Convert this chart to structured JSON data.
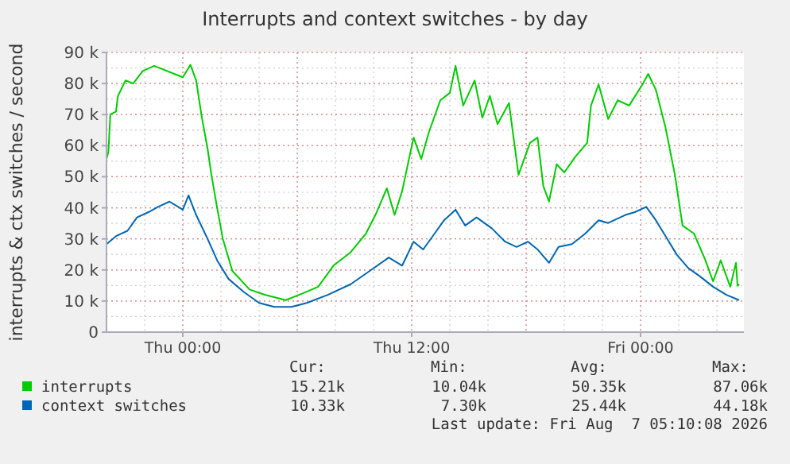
{
  "chart_data": {
    "type": "line",
    "title": "Interrupts and context switches - by day",
    "ylabel": "interrupts & ctx switches / second",
    "xlim": [
      "2026-08-05T20:00",
      "2026-08-07T05:25"
    ],
    "xticks": [
      {
        "value": "2026-08-06T00:00",
        "label": "Thu 00:00"
      },
      {
        "value": "2026-08-06T12:00",
        "label": "Thu 12:00"
      },
      {
        "value": "2026-08-07T00:00",
        "label": "Fri 00:00"
      }
    ],
    "ylim": [
      0,
      90000
    ],
    "yticks": [
      0,
      {
        "value": 10000,
        "label": "10 k"
      },
      {
        "value": 20000,
        "label": "20 k"
      },
      {
        "value": 30000,
        "label": "30 k"
      },
      {
        "value": 40000,
        "label": "40 k"
      },
      {
        "value": 50000,
        "label": "50 k"
      },
      {
        "value": 60000,
        "label": "60 k"
      },
      {
        "value": 70000,
        "label": "70 k"
      },
      {
        "value": 80000,
        "label": "80 k"
      },
      {
        "value": 90000,
        "label": "90 k"
      }
    ],
    "grid": true,
    "legend": "bottom",
    "marker": "none",
    "line_style": "solid",
    "series": [
      {
        "name": "interrupts",
        "color": "#00cc00",
        "x": [
          "2026-08-05T20:00",
          "2026-08-05T20:06",
          "2026-08-05T20:12",
          "2026-08-05T20:30",
          "2026-08-05T20:36",
          "2026-08-05T21:00",
          "2026-08-05T21:24",
          "2026-08-05T21:54",
          "2026-08-05T22:30",
          "2026-08-06T00:00",
          "2026-08-06T00:24",
          "2026-08-06T00:42",
          "2026-08-06T01:00",
          "2026-08-06T01:18",
          "2026-08-06T01:30",
          "2026-08-06T01:48",
          "2026-08-06T02:06",
          "2026-08-06T02:36",
          "2026-08-06T03:30",
          "2026-08-06T04:18",
          "2026-08-06T05:24",
          "2026-08-06T06:18",
          "2026-08-06T07:06",
          "2026-08-06T07:54",
          "2026-08-06T08:48",
          "2026-08-06T09:36",
          "2026-08-06T10:06",
          "2026-08-06T10:42",
          "2026-08-06T11:06",
          "2026-08-06T11:30",
          "2026-08-06T12:06",
          "2026-08-06T12:30",
          "2026-08-06T12:54",
          "2026-08-06T13:30",
          "2026-08-06T14:00",
          "2026-08-06T14:18",
          "2026-08-06T14:42",
          "2026-08-06T15:18",
          "2026-08-06T15:42",
          "2026-08-06T16:06",
          "2026-08-06T16:30",
          "2026-08-06T17:06",
          "2026-08-06T17:36",
          "2026-08-06T18:12",
          "2026-08-06T18:36",
          "2026-08-06T18:54",
          "2026-08-06T19:12",
          "2026-08-06T19:36",
          "2026-08-06T20:00",
          "2026-08-06T20:36",
          "2026-08-06T21:12",
          "2026-08-06T21:24",
          "2026-08-06T21:48",
          "2026-08-06T22:18",
          "2026-08-06T22:48",
          "2026-08-06T23:24",
          "2026-08-07T00:06",
          "2026-08-07T00:24",
          "2026-08-07T00:48",
          "2026-08-07T01:18",
          "2026-08-07T01:48",
          "2026-08-07T02:12",
          "2026-08-07T02:48",
          "2026-08-07T03:24",
          "2026-08-07T03:48",
          "2026-08-07T04:12",
          "2026-08-07T04:42",
          "2026-08-07T05:00",
          "2026-08-07T05:05",
          "2026-08-07T05:10"
        ],
        "values": [
          55700,
          58000,
          70000,
          71000,
          76000,
          81000,
          80000,
          84000,
          85700,
          82000,
          86000,
          81000,
          69000,
          59000,
          50600,
          40000,
          30000,
          19700,
          13700,
          12000,
          10300,
          12500,
          14600,
          21400,
          25700,
          31700,
          37700,
          46300,
          37700,
          45400,
          62600,
          55700,
          64300,
          74600,
          77000,
          85700,
          72900,
          81000,
          69000,
          76000,
          66900,
          73700,
          50600,
          60900,
          62600,
          47000,
          42000,
          54000,
          51400,
          56600,
          60900,
          72900,
          79700,
          68600,
          74600,
          72900,
          79700,
          83100,
          78000,
          66000,
          50600,
          34300,
          31700,
          23100,
          16300,
          23100,
          14600,
          22300,
          14900,
          15400
        ]
      },
      {
        "name": "context switches",
        "color": "#0066b3",
        "x": [
          "2026-08-05T20:00",
          "2026-08-05T20:30",
          "2026-08-05T21:06",
          "2026-08-05T21:36",
          "2026-08-05T22:12",
          "2026-08-05T22:42",
          "2026-08-05T23:18",
          "2026-08-06T00:00",
          "2026-08-06T00:18",
          "2026-08-06T00:42",
          "2026-08-06T01:18",
          "2026-08-06T01:48",
          "2026-08-06T02:24",
          "2026-08-06T03:12",
          "2026-08-06T04:00",
          "2026-08-06T04:48",
          "2026-08-06T05:42",
          "2026-08-06T06:30",
          "2026-08-06T07:36",
          "2026-08-06T08:48",
          "2026-08-06T09:48",
          "2026-08-06T10:48",
          "2026-08-06T11:30",
          "2026-08-06T12:06",
          "2026-08-06T12:36",
          "2026-08-06T13:12",
          "2026-08-06T13:42",
          "2026-08-06T14:18",
          "2026-08-06T14:48",
          "2026-08-06T15:24",
          "2026-08-06T16:12",
          "2026-08-06T16:54",
          "2026-08-06T17:30",
          "2026-08-06T18:06",
          "2026-08-06T18:36",
          "2026-08-06T19:12",
          "2026-08-06T19:42",
          "2026-08-06T20:24",
          "2026-08-06T21:06",
          "2026-08-06T21:48",
          "2026-08-06T22:18",
          "2026-08-06T23:12",
          "2026-08-06T23:42",
          "2026-08-07T00:18",
          "2026-08-07T00:48",
          "2026-08-07T01:24",
          "2026-08-07T01:54",
          "2026-08-07T02:30",
          "2026-08-07T03:06",
          "2026-08-07T03:48",
          "2026-08-07T04:30",
          "2026-08-07T05:10"
        ],
        "values": [
          28300,
          30900,
          32600,
          36900,
          38600,
          40300,
          42000,
          39400,
          44000,
          37700,
          30000,
          23100,
          17100,
          12900,
          9400,
          8100,
          8100,
          9400,
          12000,
          15400,
          19700,
          24000,
          21400,
          29100,
          26600,
          31700,
          36000,
          39400,
          34300,
          36900,
          33400,
          29100,
          27400,
          29100,
          26600,
          22300,
          27400,
          28300,
          31700,
          36000,
          35100,
          37700,
          38600,
          40300,
          36000,
          30000,
          24900,
          20600,
          18000,
          14600,
          12000,
          10300
        ]
      }
    ],
    "annotations": [
      "Cur:",
      "Min:",
      "Avg:",
      "Max:",
      "15.21k",
      "10.04k",
      "50.35k",
      "87.06k",
      "10.33k",
      "7.30k",
      "25.44k",
      "44.18k",
      "Last update: Fri Aug  7 05:10:08 2026"
    ]
  }
}
